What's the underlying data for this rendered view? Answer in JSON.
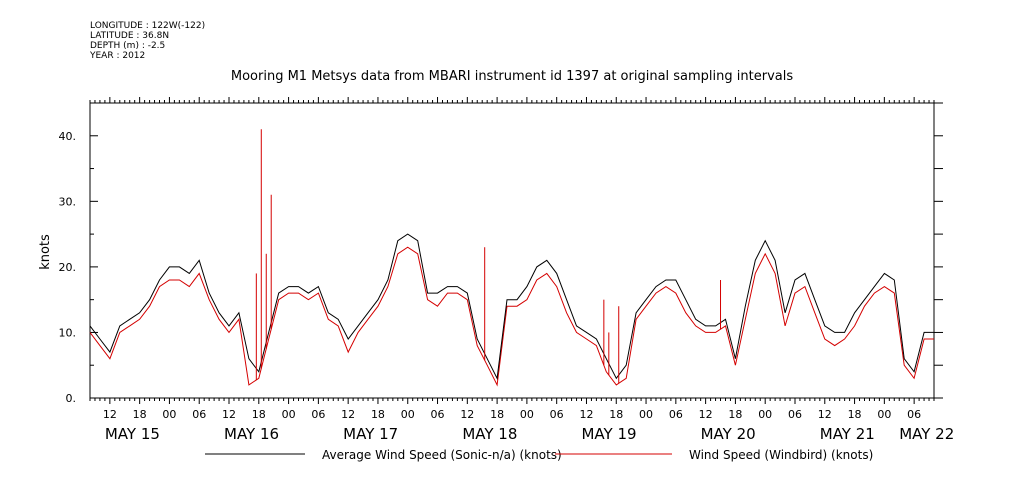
{
  "meta": {
    "longitude": "LONGITUDE : 122W(-122)",
    "latitude": "LATITUDE : 36.8N",
    "depth": "DEPTH (m) : -2.5",
    "year": "YEAR : 2012"
  },
  "chart_data": {
    "type": "line",
    "title": "Mooring M1 Metsys data from MBARI instrument id 1397 at original sampling intervals",
    "ylabel": "knots",
    "xlabel": "",
    "ylim": [
      0,
      45
    ],
    "yticks": [
      0,
      10,
      20,
      30,
      40
    ],
    "ytick_labels": [
      "0.",
      "10.",
      "20.",
      "30.",
      "40."
    ],
    "xlim_hours": [
      8,
      178
    ],
    "xticks_hours": [
      12,
      18,
      24,
      30,
      36,
      42,
      48,
      54,
      60,
      66,
      72,
      78,
      84,
      90,
      96,
      102,
      108,
      114,
      120,
      126,
      132,
      138,
      144,
      150,
      156,
      162,
      168,
      174
    ],
    "xtick_labels": [
      "12",
      "18",
      "00",
      "06",
      "12",
      "18",
      "00",
      "06",
      "12",
      "18",
      "00",
      "06",
      "12",
      "18",
      "00",
      "06",
      "12",
      "18",
      "00",
      "06",
      "12",
      "18",
      "00",
      "06",
      "12",
      "18",
      "00",
      "06"
    ],
    "date_labels": [
      {
        "hour": 12,
        "text": "MAY 15"
      },
      {
        "hour": 36,
        "text": "MAY 16"
      },
      {
        "hour": 60,
        "text": "MAY 17"
      },
      {
        "hour": 84,
        "text": "MAY 18"
      },
      {
        "hour": 108,
        "text": "MAY 19"
      },
      {
        "hour": 132,
        "text": "MAY 20"
      },
      {
        "hour": 156,
        "text": "MAY 21"
      },
      {
        "hour": 172,
        "text": "MAY 22"
      }
    ],
    "grid": false,
    "legend_position": "bottom",
    "series": [
      {
        "name": "Average Wind Speed (Sonic-n/a) (knots)",
        "color": "#000000",
        "x_hours": [
          8,
          10,
          12,
          14,
          16,
          18,
          20,
          22,
          24,
          26,
          28,
          30,
          32,
          34,
          36,
          38,
          40,
          42,
          44,
          46,
          48,
          50,
          52,
          54,
          56,
          58,
          60,
          62,
          64,
          66,
          68,
          70,
          72,
          74,
          76,
          78,
          80,
          82,
          84,
          86,
          88,
          90,
          92,
          94,
          96,
          98,
          100,
          102,
          104,
          106,
          108,
          110,
          112,
          114,
          116,
          118,
          120,
          122,
          124,
          126,
          128,
          130,
          132,
          134,
          136,
          138,
          140,
          142,
          144,
          146,
          148,
          150,
          152,
          154,
          156,
          158,
          160,
          162,
          164,
          166,
          168,
          170,
          172,
          174,
          176,
          178
        ],
        "values": [
          11,
          9,
          7,
          11,
          12,
          13,
          15,
          18,
          20,
          20,
          19,
          21,
          16,
          13,
          11,
          13,
          6,
          4,
          10,
          16,
          17,
          17,
          16,
          17,
          13,
          12,
          9,
          11,
          13,
          15,
          18,
          24,
          25,
          24,
          16,
          16,
          17,
          17,
          16,
          9,
          6,
          3,
          15,
          15,
          17,
          20,
          21,
          19,
          15,
          11,
          10,
          9,
          6,
          3,
          5,
          13,
          15,
          17,
          18,
          18,
          15,
          12,
          11,
          11,
          12,
          6,
          14,
          21,
          24,
          21,
          13,
          18,
          19,
          15,
          11,
          10,
          10,
          13,
          15,
          17,
          19,
          18,
          6,
          4,
          10,
          10
        ]
      },
      {
        "name": "Wind Speed (Windbird) (knots)",
        "color": "#d40000",
        "x_hours": [
          8,
          10,
          12,
          14,
          16,
          18,
          20,
          22,
          24,
          26,
          28,
          30,
          32,
          34,
          36,
          38,
          40,
          42,
          44,
          46,
          48,
          50,
          52,
          54,
          56,
          58,
          60,
          62,
          64,
          66,
          68,
          70,
          72,
          74,
          76,
          78,
          80,
          82,
          84,
          86,
          88,
          90,
          92,
          94,
          96,
          98,
          100,
          102,
          104,
          106,
          108,
          110,
          112,
          114,
          116,
          118,
          120,
          122,
          124,
          126,
          128,
          130,
          132,
          134,
          136,
          138,
          140,
          142,
          144,
          146,
          148,
          150,
          152,
          154,
          156,
          158,
          160,
          162,
          164,
          166,
          168,
          170,
          172,
          174,
          176,
          178
        ],
        "values": [
          10,
          8,
          6,
          10,
          11,
          12,
          14,
          17,
          18,
          18,
          17,
          19,
          15,
          12,
          10,
          12,
          2,
          3,
          9,
          15,
          16,
          16,
          15,
          16,
          12,
          11,
          7,
          10,
          12,
          14,
          17,
          22,
          23,
          22,
          15,
          14,
          16,
          16,
          15,
          8,
          5,
          2,
          14,
          14,
          15,
          18,
          19,
          17,
          13,
          10,
          9,
          8,
          4,
          2,
          3,
          12,
          14,
          16,
          17,
          16,
          13,
          11,
          10,
          10,
          11,
          5,
          12,
          19,
          22,
          19,
          11,
          16,
          17,
          13,
          9,
          8,
          9,
          11,
          14,
          16,
          17,
          16,
          5,
          3,
          9,
          9
        ]
      }
    ],
    "spikes": {
      "series": "Wind Speed (Windbird) (knots)",
      "x_hours": [
        41.5,
        42.5,
        43.5,
        44.5,
        87.5,
        111.5,
        112.5,
        114.5,
        135
      ],
      "values": [
        19,
        41,
        22,
        31,
        23,
        15,
        10,
        14,
        18
      ]
    }
  }
}
